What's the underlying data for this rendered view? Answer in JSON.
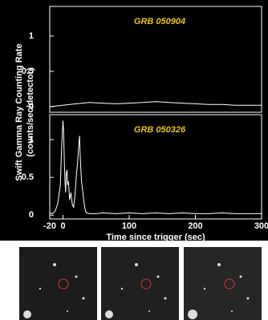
{
  "y_label": [
    "Swift Gamma Ray Counting Rate",
    "(counts/sec/detector)"
  ],
  "chart_data": [
    {
      "type": "line",
      "title": "GRB 050904",
      "x": [
        -20,
        0,
        20,
        40,
        60,
        80,
        100,
        120,
        140,
        160,
        180,
        200,
        220,
        240,
        260,
        280,
        300
      ],
      "series": [
        {
          "color": "#ffffff",
          "values": [
            0.0,
            0.02,
            0.04,
            0.06,
            0.05,
            0.04,
            0.05,
            0.06,
            0.07,
            0.06,
            0.05,
            0.04,
            0.03,
            0.03,
            0.02,
            0.02,
            0.02
          ]
        }
      ],
      "xlim": [
        -20,
        300
      ],
      "ylim": [
        -0.08,
        1.42
      ],
      "yticks": [
        0,
        0.5,
        1
      ]
    },
    {
      "type": "line",
      "title": "GRB 050326",
      "x_label": "Time since trigger (sec)",
      "x": [
        -20,
        -16,
        -12,
        -8,
        -4,
        -2,
        0,
        1,
        2,
        3,
        4,
        5,
        6,
        7,
        8,
        9,
        10,
        12,
        14,
        16,
        18,
        20,
        22,
        24,
        25,
        26,
        27,
        28,
        30,
        32,
        34,
        36,
        40,
        50,
        60,
        80,
        100,
        120,
        140,
        160,
        180,
        200,
        220,
        240,
        260,
        280,
        300
      ],
      "series": [
        {
          "color": "#ffffff",
          "values": [
            0.03,
            0.02,
            0.05,
            0.15,
            0.4,
            0.9,
            1.25,
            1.1,
            0.7,
            0.45,
            0.3,
            0.55,
            0.6,
            0.4,
            0.45,
            0.35,
            0.2,
            0.3,
            0.15,
            0.1,
            0.25,
            0.5,
            0.7,
            0.95,
            1.05,
            0.8,
            0.6,
            0.45,
            0.3,
            0.15,
            0.05,
            0.03,
            0.02,
            0.02,
            0.03,
            0.02,
            0.03,
            0.02,
            0.03,
            0.02,
            0.03,
            0.02,
            0.02,
            0.03,
            0.02,
            0.02,
            0.02
          ]
        }
      ],
      "xlim": [
        -20,
        300
      ],
      "xticks": [
        -20,
        0,
        100,
        200,
        300
      ],
      "ylim": [
        -0.05,
        1.33
      ],
      "yticks": [
        0,
        0.5,
        1
      ]
    }
  ]
}
